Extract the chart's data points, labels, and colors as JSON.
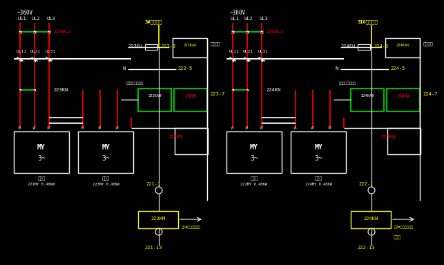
{
  "bg": "#000000",
  "W": "#ffffff",
  "R": "#ff0000",
  "Y": "#ffff00",
  "G": "#00bb00",
  "panels": [
    {
      "ox": 5,
      "voltage": "~360V",
      "ul_labels": [
        "UL1",
        "UL2",
        "UL3"
      ],
      "ul2_labels": [
        "UL11",
        "UL21",
        "UL31"
      ],
      "bus_label": "2230L2",
      "fu_label": "223FU",
      "node1": "223-3",
      "node2": "223-5",
      "node3": "223-7",
      "kn_label": "223KN",
      "kn2_label": "223KN",
      "kau_label": "223KAU",
      "ka9_label": "223KA9",
      "km_label": "23KM",
      "ctrl_label": "主接触器控制回路",
      "event_label": "事故报警",
      "motor1_top": "制动器",
      "motor1_bot": "221MY 0.40KW",
      "motor2_top": "制动器",
      "motor2_bot": "223MY 0.40KW",
      "yellow_top": "3#电容支路",
      "bnode1": "221-1",
      "bnode2": "221-13",
      "bkm": "223KM",
      "barrow": "至1#箱箱变控制柜"
    },
    {
      "ox": 313,
      "voltage": "~360V",
      "ul_labels": [
        "UL1",
        "UL2",
        "UL3"
      ],
      "ul2_labels": [
        "UL11",
        "UL21",
        "UL31"
      ],
      "bus_label": "2240L2",
      "fu_label": "224FU",
      "node1": "224-3",
      "node2": "224-5",
      "node3": "224-7",
      "kn_label": "224KN",
      "kn2_label": "224KN",
      "kau_label": "224KAU",
      "ka9_label": "224KA9",
      "km_label": "24KN",
      "ctrl_label": "主接触器控制回路",
      "event_label": "事故报警",
      "motor1_top": "制动器",
      "motor1_bot": "222MY 0.40KW",
      "motor2_top": "制动器",
      "motor2_bot": "224MY 0.40KW",
      "yellow_top": "310电容支路",
      "bnode1": "222-1",
      "bnode2": "222-13",
      "bkm": "224KN",
      "barrow": "至2#箱箱变控制柜"
    }
  ]
}
